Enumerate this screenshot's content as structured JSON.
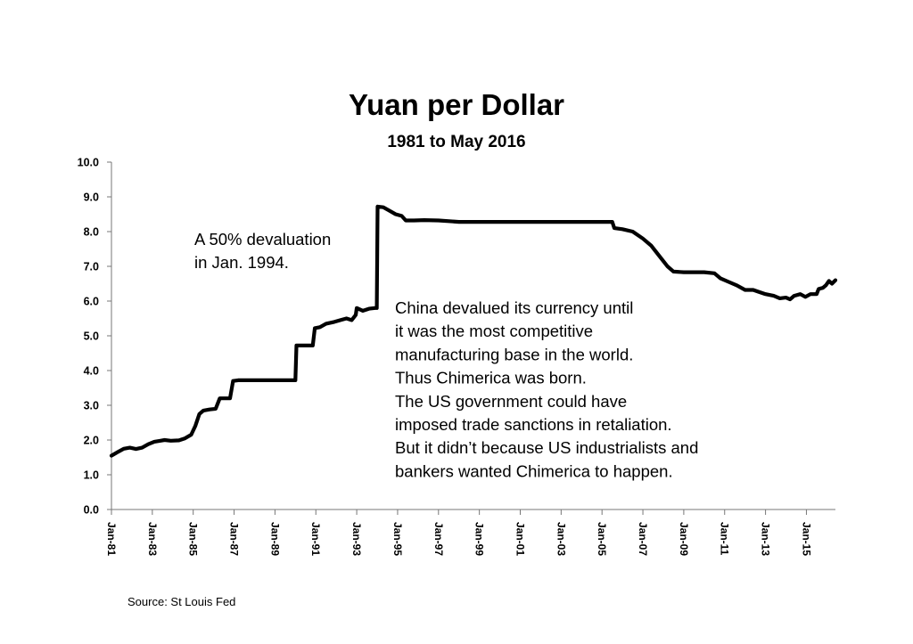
{
  "chart_data": {
    "type": "line",
    "title": "Yuan per Dollar",
    "subtitle": "1981 to May 2016",
    "xlabel": "",
    "ylabel": "",
    "ylim": [
      0,
      10
    ],
    "yticks": [
      "0.0",
      "1.0",
      "2.0",
      "3.0",
      "4.0",
      "5.0",
      "6.0",
      "7.0",
      "8.0",
      "9.0",
      "10.0"
    ],
    "xticks": [
      {
        "label": "Jan-81",
        "year": 1981
      },
      {
        "label": "Jan-83",
        "year": 1983
      },
      {
        "label": "Jan-85",
        "year": 1985
      },
      {
        "label": "Jan-87",
        "year": 1987
      },
      {
        "label": "Jan-89",
        "year": 1989
      },
      {
        "label": "Jan-91",
        "year": 1991
      },
      {
        "label": "Jan-93",
        "year": 1993
      },
      {
        "label": "Jan-95",
        "year": 1995
      },
      {
        "label": "Jan-97",
        "year": 1997
      },
      {
        "label": "Jan-99",
        "year": 1999
      },
      {
        "label": "Jan-01",
        "year": 2001
      },
      {
        "label": "Jan-03",
        "year": 2003
      },
      {
        "label": "Jan-05",
        "year": 2005
      },
      {
        "label": "Jan-07",
        "year": 2007
      },
      {
        "label": "Jan-09",
        "year": 2009
      },
      {
        "label": "Jan-11",
        "year": 2011
      },
      {
        "label": "Jan-13",
        "year": 2013
      },
      {
        "label": "Jan-15",
        "year": 2015
      }
    ],
    "xrange": [
      1981.0,
      2016.42
    ],
    "grid": false,
    "legend": "none",
    "line_color": "#000000",
    "series": [
      {
        "values": [
          [
            1981.0,
            1.55
          ],
          [
            1981.3,
            1.65
          ],
          [
            1981.6,
            1.75
          ],
          [
            1981.9,
            1.78
          ],
          [
            1982.2,
            1.74
          ],
          [
            1982.5,
            1.78
          ],
          [
            1982.8,
            1.88
          ],
          [
            1983.1,
            1.95
          ],
          [
            1983.4,
            1.98
          ],
          [
            1983.6,
            2.0
          ],
          [
            1983.9,
            1.98
          ],
          [
            1984.3,
            1.99
          ],
          [
            1984.6,
            2.05
          ],
          [
            1984.9,
            2.15
          ],
          [
            1985.1,
            2.4
          ],
          [
            1985.3,
            2.75
          ],
          [
            1985.5,
            2.85
          ],
          [
            1985.8,
            2.88
          ],
          [
            1986.1,
            2.9
          ],
          [
            1986.3,
            3.2
          ],
          [
            1986.5,
            3.2
          ],
          [
            1986.8,
            3.2
          ],
          [
            1986.95,
            3.7
          ],
          [
            1987.2,
            3.72
          ],
          [
            1988.0,
            3.72
          ],
          [
            1989.0,
            3.72
          ],
          [
            1989.8,
            3.72
          ],
          [
            1990.0,
            3.72
          ],
          [
            1990.05,
            4.72
          ],
          [
            1990.5,
            4.72
          ],
          [
            1990.85,
            4.72
          ],
          [
            1990.95,
            5.22
          ],
          [
            1991.2,
            5.25
          ],
          [
            1991.5,
            5.35
          ],
          [
            1991.9,
            5.4
          ],
          [
            1992.2,
            5.45
          ],
          [
            1992.5,
            5.5
          ],
          [
            1992.75,
            5.45
          ],
          [
            1992.95,
            5.6
          ],
          [
            1993.0,
            5.8
          ],
          [
            1993.3,
            5.72
          ],
          [
            1993.6,
            5.78
          ],
          [
            1993.9,
            5.8
          ],
          [
            1993.98,
            5.8
          ],
          [
            1994.02,
            8.72
          ],
          [
            1994.3,
            8.7
          ],
          [
            1994.6,
            8.6
          ],
          [
            1994.9,
            8.5
          ],
          [
            1995.2,
            8.45
          ],
          [
            1995.4,
            8.32
          ],
          [
            1995.8,
            8.32
          ],
          [
            1996.3,
            8.33
          ],
          [
            1997.0,
            8.32
          ],
          [
            1998.0,
            8.28
          ],
          [
            1999.0,
            8.28
          ],
          [
            2001.0,
            8.28
          ],
          [
            2003.0,
            8.28
          ],
          [
            2004.5,
            8.28
          ],
          [
            2005.5,
            8.28
          ],
          [
            2005.6,
            8.1
          ],
          [
            2006.0,
            8.07
          ],
          [
            2006.5,
            8.0
          ],
          [
            2007.0,
            7.8
          ],
          [
            2007.4,
            7.6
          ],
          [
            2007.8,
            7.3
          ],
          [
            2008.2,
            7.0
          ],
          [
            2008.5,
            6.85
          ],
          [
            2009.0,
            6.83
          ],
          [
            2010.0,
            6.83
          ],
          [
            2010.5,
            6.8
          ],
          [
            2010.8,
            6.65
          ],
          [
            2011.2,
            6.55
          ],
          [
            2011.6,
            6.45
          ],
          [
            2012.0,
            6.32
          ],
          [
            2012.4,
            6.32
          ],
          [
            2012.6,
            6.28
          ],
          [
            2013.0,
            6.2
          ],
          [
            2013.4,
            6.15
          ],
          [
            2013.7,
            6.08
          ],
          [
            2014.0,
            6.1
          ],
          [
            2014.2,
            6.05
          ],
          [
            2014.4,
            6.15
          ],
          [
            2014.7,
            6.2
          ],
          [
            2014.95,
            6.12
          ],
          [
            2015.2,
            6.2
          ],
          [
            2015.5,
            6.2
          ],
          [
            2015.6,
            6.35
          ],
          [
            2015.8,
            6.38
          ],
          [
            2015.95,
            6.45
          ],
          [
            2016.1,
            6.58
          ],
          [
            2016.25,
            6.5
          ],
          [
            2016.42,
            6.6
          ]
        ]
      }
    ],
    "annotations": [
      {
        "id": "devaluation",
        "lines": [
          "A 50% devaluation",
          "in Jan. 1994."
        ]
      },
      {
        "id": "chimerica",
        "lines": [
          "China devalued its currency until",
          "it was the most competitive",
          "manufacturing base in the world.",
          "Thus Chimerica was born.",
          "The US government could have",
          "imposed trade sanctions in retaliation.",
          "But it didn’t because US industrialists and",
          "bankers wanted Chimerica to happen."
        ]
      }
    ],
    "source": "Source: St Louis Fed"
  }
}
